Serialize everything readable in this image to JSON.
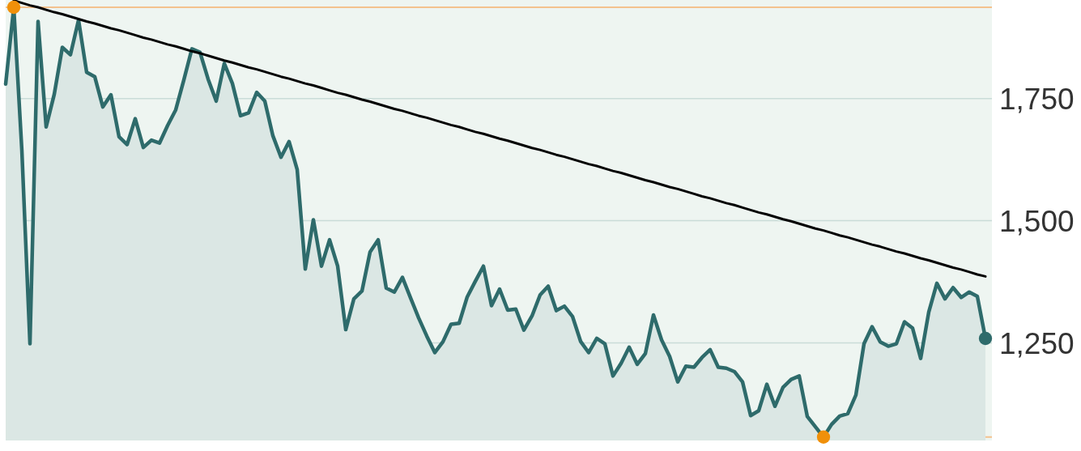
{
  "chart_data": {
    "type": "area",
    "categories": [
      null,
      null,
      null,
      null,
      null,
      null,
      null,
      null,
      null,
      null,
      null,
      null,
      null,
      null,
      null,
      null,
      null,
      null,
      null,
      null,
      null,
      null,
      null,
      null,
      null,
      null,
      null,
      null,
      null,
      null,
      null,
      null,
      null,
      null,
      null,
      null,
      null,
      null,
      null,
      null,
      null,
      null,
      null,
      null,
      null,
      null,
      null,
      null,
      null,
      null,
      null,
      null,
      null,
      null,
      null,
      null,
      null,
      null,
      null,
      null,
      null,
      null,
      null,
      null,
      null,
      null,
      null,
      null,
      null,
      null,
      null,
      null,
      null,
      null,
      null,
      null,
      null,
      null,
      null,
      null,
      null,
      null,
      null,
      null,
      null,
      null,
      null,
      null,
      null,
      null,
      null,
      null,
      null,
      null,
      null,
      null,
      null,
      null,
      null,
      null,
      null,
      null,
      null,
      null,
      null,
      null,
      null,
      null,
      null,
      null,
      null,
      null,
      null,
      null,
      null,
      null,
      null,
      null,
      null,
      null,
      null,
      null
    ],
    "ylim": [
      1050,
      1952
    ],
    "yticks": [
      {
        "value": 1250,
        "label": "1,250"
      },
      {
        "value": 1500,
        "label": "1,500"
      },
      {
        "value": 1750,
        "label": "1,750"
      }
    ],
    "tick_labels": "y",
    "grid": "y",
    "ref_lines": [
      {
        "axis": "y",
        "value": 1937,
        "color": "#f3c28e"
      },
      {
        "axis": "y",
        "value": 1057,
        "color": "#f3c28e"
      }
    ],
    "series": [
      {
        "color": "#2e6b6b",
        "values": [
          1780,
          1937,
          1644,
          1248,
          1908,
          1692,
          1759,
          1855,
          1840,
          1911,
          1804,
          1795,
          1733,
          1758,
          1672,
          1656,
          1709,
          1650,
          1665,
          1659,
          1695,
          1727,
          1788,
          1852,
          1845,
          1790,
          1745,
          1822,
          1781,
          1715,
          1721,
          1763,
          1745,
          1674,
          1630,
          1662,
          1605,
          1401,
          1502,
          1407,
          1461,
          1407,
          1277,
          1340,
          1356,
          1436,
          1461,
          1362,
          1354,
          1384,
          1342,
          1301,
          1264,
          1230,
          1252,
          1288,
          1290,
          1344,
          1376,
          1407,
          1326,
          1360,
          1317,
          1319,
          1276,
          1305,
          1348,
          1366,
          1316,
          1325,
          1304,
          1253,
          1230,
          1259,
          1248,
          1182,
          1208,
          1241,
          1206,
          1228,
          1307,
          1256,
          1222,
          1170,
          1202,
          1200,
          1220,
          1236,
          1200,
          1198,
          1191,
          1170,
          1101,
          1111,
          1165,
          1120,
          1159,
          1175,
          1182,
          1099,
          1078,
          1057,
          1083,
          1100,
          1105,
          1143,
          1248,
          1283,
          1252,
          1243,
          1248,
          1293,
          1280,
          1218,
          1313,
          1372,
          1340,
          1363,
          1343,
          1354,
          1345,
          1259
        ]
      },
      {
        "type": "line",
        "color": "#000000",
        "values": [
          null,
          1951,
          1946,
          1941,
          1937,
          1932,
          1927,
          1923,
          1918,
          1913,
          1908,
          1904,
          1899,
          1894,
          1890,
          1885,
          1880,
          1875,
          1871,
          1866,
          1861,
          1857,
          1852,
          1847,
          1843,
          1838,
          1833,
          1828,
          1824,
          1819,
          1814,
          1810,
          1805,
          1800,
          1795,
          1791,
          1786,
          1781,
          1777,
          1772,
          1767,
          1762,
          1758,
          1753,
          1748,
          1744,
          1739,
          1734,
          1729,
          1725,
          1720,
          1715,
          1711,
          1706,
          1701,
          1696,
          1692,
          1687,
          1682,
          1678,
          1673,
          1668,
          1664,
          1659,
          1654,
          1649,
          1645,
          1640,
          1635,
          1631,
          1626,
          1621,
          1616,
          1612,
          1607,
          1602,
          1598,
          1593,
          1588,
          1583,
          1579,
          1574,
          1569,
          1565,
          1560,
          1555,
          1550,
          1546,
          1541,
          1536,
          1532,
          1527,
          1522,
          1517,
          1513,
          1508,
          1503,
          1499,
          1494,
          1489,
          1484,
          1480,
          1475,
          1470,
          1466,
          1461,
          1456,
          1451,
          1447,
          1442,
          1437,
          1433,
          1428,
          1423,
          1419,
          1414,
          1409,
          1404,
          1400,
          1395,
          1390,
          1386
        ]
      },
      {
        "type": "scatter",
        "color": "#f0900a",
        "marker": "circle",
        "values": [
          null,
          1937,
          null,
          null,
          null,
          null,
          null,
          null,
          null,
          null,
          null,
          null,
          null,
          null,
          null,
          null,
          null,
          null,
          null,
          null,
          null,
          null,
          null,
          null,
          null,
          null,
          null,
          null,
          null,
          null,
          null,
          null,
          null,
          null,
          null,
          null,
          null,
          null,
          null,
          null,
          null,
          null,
          null,
          null,
          null,
          null,
          null,
          null,
          null,
          null,
          null,
          null,
          null,
          null,
          null,
          null,
          null,
          null,
          null,
          null,
          null,
          null,
          null,
          null,
          null,
          null,
          null,
          null,
          null,
          null,
          null,
          null,
          null,
          null,
          null,
          null,
          null,
          null,
          null,
          null,
          null,
          null,
          null,
          null,
          null,
          null,
          null,
          null,
          null,
          null,
          null,
          null,
          null,
          null,
          null,
          null,
          null,
          null,
          null,
          null,
          null,
          1057,
          null,
          null,
          null,
          null,
          null,
          null,
          null,
          null,
          null,
          null,
          null,
          null,
          null,
          null,
          null,
          null,
          null,
          null,
          null,
          null
        ]
      },
      {
        "type": "scatter",
        "color": "#2e6b6b",
        "marker": "circle",
        "values": [
          null,
          null,
          null,
          null,
          null,
          null,
          null,
          null,
          null,
          null,
          null,
          null,
          null,
          null,
          null,
          null,
          null,
          null,
          null,
          null,
          null,
          null,
          null,
          null,
          null,
          null,
          null,
          null,
          null,
          null,
          null,
          null,
          null,
          null,
          null,
          null,
          null,
          null,
          null,
          null,
          null,
          null,
          null,
          null,
          null,
          null,
          null,
          null,
          null,
          null,
          null,
          null,
          null,
          null,
          null,
          null,
          null,
          null,
          null,
          null,
          null,
          null,
          null,
          null,
          null,
          null,
          null,
          null,
          null,
          null,
          null,
          null,
          null,
          null,
          null,
          null,
          null,
          null,
          null,
          null,
          null,
          null,
          null,
          null,
          null,
          null,
          null,
          null,
          null,
          null,
          null,
          null,
          null,
          null,
          null,
          null,
          null,
          null,
          null,
          null,
          null,
          null,
          null,
          null,
          null,
          null,
          null,
          null,
          null,
          null,
          null,
          null,
          null,
          null,
          null,
          null,
          null,
          null,
          null,
          null,
          null,
          1259
        ]
      }
    ]
  }
}
